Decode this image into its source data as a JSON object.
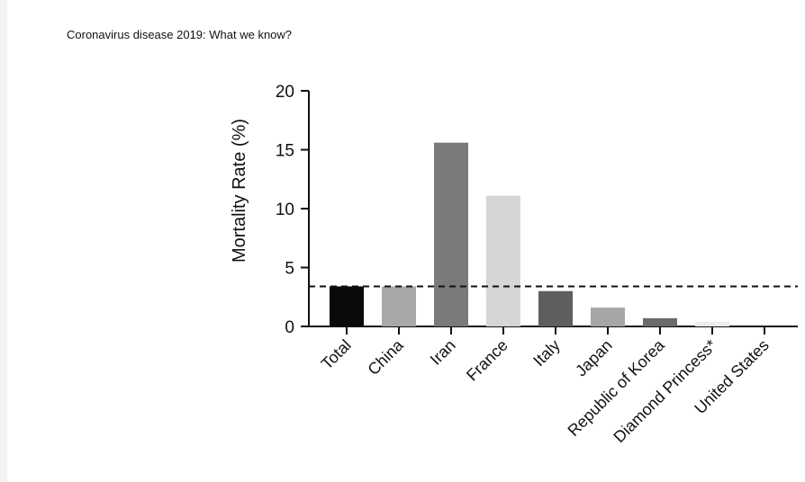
{
  "page": {
    "title": "Coronavirus disease 2019: What we know?"
  },
  "chart_data": {
    "type": "bar",
    "title": "",
    "xlabel": "",
    "ylabel": "Mortality Rate (%)",
    "ylim": [
      0,
      20
    ],
    "yticks": [
      0,
      5,
      10,
      15,
      20
    ],
    "categories": [
      "Total",
      "China",
      "Iran",
      "France",
      "Italy",
      "Japan",
      "Republic of Korea",
      "Diamond Princess*",
      "United States"
    ],
    "values": [
      3.4,
      3.4,
      15.6,
      11.1,
      3.0,
      1.6,
      0.7,
      0.4,
      0.0
    ],
    "bar_colors": [
      "#0a0a0a",
      "#a8a8a8",
      "#7a7a7a",
      "#d6d6d6",
      "#5e5e5e",
      "#a6a6a6",
      "#6a6a6a",
      "#ececec",
      "#ffffff"
    ],
    "reference_line": {
      "y": 3.4,
      "style": "dashed"
    },
    "grid": false,
    "legend": "none"
  }
}
